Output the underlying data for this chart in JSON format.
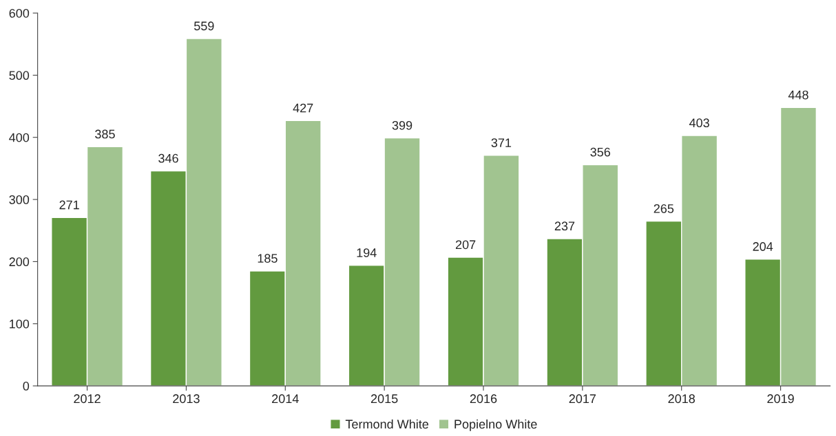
{
  "chart_data": {
    "type": "bar",
    "categories": [
      "2012",
      "2013",
      "2014",
      "2015",
      "2016",
      "2017",
      "2018",
      "2019"
    ],
    "series": [
      {
        "name": "Termond White",
        "color": "#629a3f",
        "values": [
          271,
          346,
          185,
          194,
          207,
          237,
          265,
          204
        ]
      },
      {
        "name": "Popielno White",
        "color": "#a1c490",
        "values": [
          385,
          559,
          427,
          399,
          371,
          356,
          403,
          448
        ]
      }
    ],
    "ylim": [
      0,
      600
    ],
    "yticks": [
      0,
      100,
      200,
      300,
      400,
      500,
      600
    ],
    "data_labels": true,
    "grid": false,
    "legend": "bottom"
  }
}
